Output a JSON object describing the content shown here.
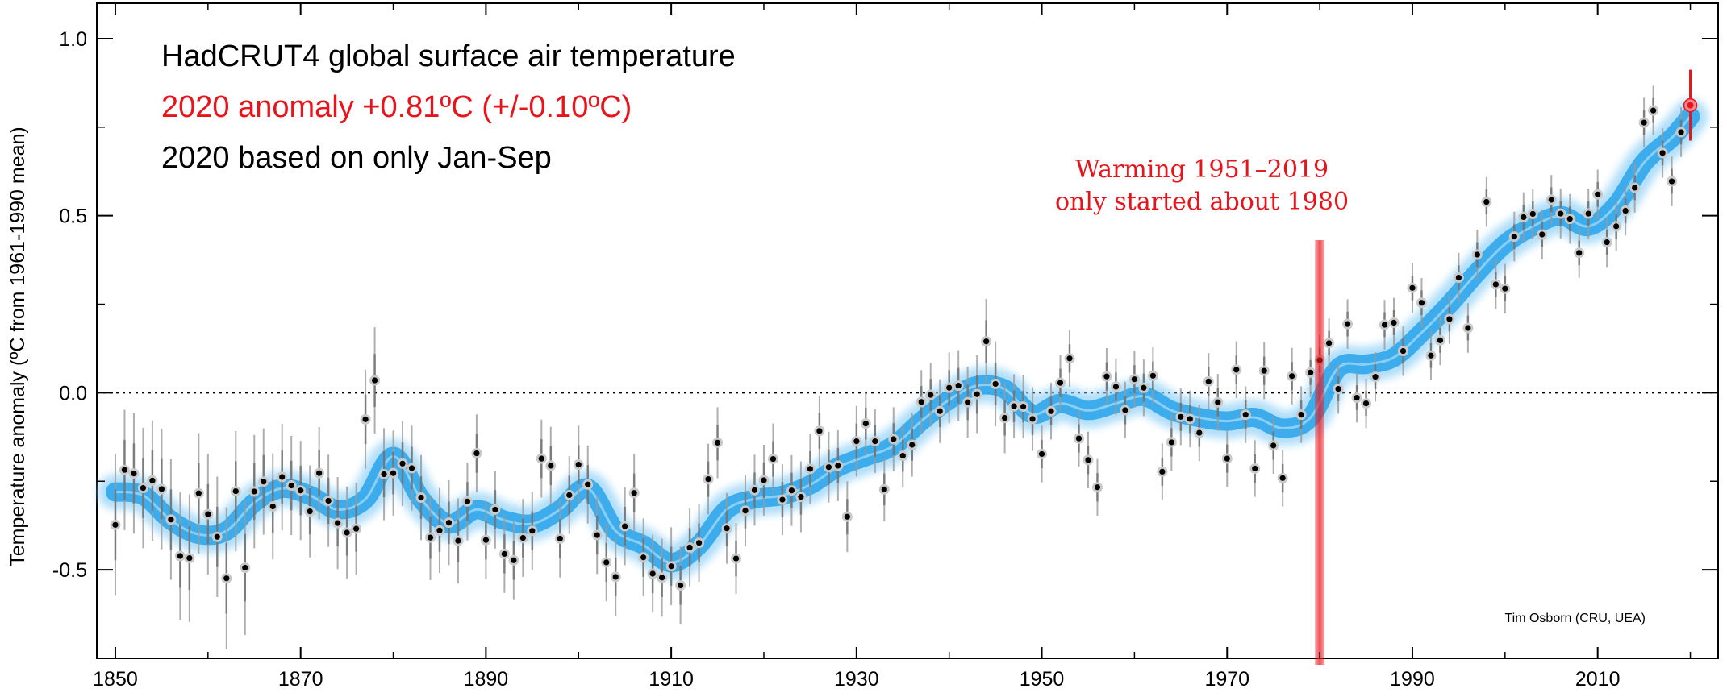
{
  "chart_data": {
    "type": "scatter",
    "title_lines": [
      {
        "text": "HadCRUT4 global surface air temperature",
        "color": "#000000"
      },
      {
        "text": "2020 anomaly +0.81ºC (+/-0.10ºC)",
        "color": "#e8141b"
      },
      {
        "text": "2020 based on only Jan-Sep",
        "color": "#000000"
      }
    ],
    "ylabel": "Temperature anomaly (ºC from 1961-1990 mean)",
    "xlabel": "",
    "xlim": [
      1848,
      2023
    ],
    "ylim": [
      -0.75,
      1.1
    ],
    "x_ticks": [
      1850,
      1870,
      1890,
      1910,
      1930,
      1950,
      1970,
      1990,
      2010
    ],
    "x_tick_labels": [
      "1850",
      "1870",
      "1890",
      "1910",
      "1930",
      "1950",
      "1970",
      "1990",
      "2010"
    ],
    "y_ticks": [
      -0.5,
      0.0,
      0.5,
      1.0
    ],
    "y_tick_labels": [
      "-0.5",
      "0.0",
      "0.5",
      "1.0"
    ],
    "zero_line": true,
    "annotation": {
      "lines": [
        "Warming 1951–2019",
        "only started about 1980"
      ],
      "color": "#e8141b",
      "marker_year": 1980
    },
    "credit": "Tim Osborn (CRU, UEA)",
    "series": [
      {
        "years": [
          1850,
          1851,
          1852,
          1853,
          1854,
          1855,
          1856,
          1857,
          1858,
          1859,
          1860,
          1861,
          1862,
          1863,
          1864,
          1865,
          1866,
          1867,
          1868,
          1869,
          1870,
          1871,
          1872,
          1873,
          1874,
          1875,
          1876,
          1877,
          1878,
          1879,
          1880,
          1881,
          1882,
          1883,
          1884,
          1885,
          1886,
          1887,
          1888,
          1889,
          1890,
          1891,
          1892,
          1893,
          1894,
          1895,
          1896,
          1897,
          1898,
          1899,
          1900,
          1901,
          1902,
          1903,
          1904,
          1905,
          1906,
          1907,
          1908,
          1909,
          1910,
          1911,
          1912,
          1913,
          1914,
          1915,
          1916,
          1917,
          1918,
          1919,
          1920,
          1921,
          1922,
          1923,
          1924,
          1925,
          1926,
          1927,
          1928,
          1929,
          1930,
          1931,
          1932,
          1933,
          1934,
          1935,
          1936,
          1937,
          1938,
          1939,
          1940,
          1941,
          1942,
          1943,
          1944,
          1945,
          1946,
          1947,
          1948,
          1949,
          1950,
          1951,
          1952,
          1953,
          1954,
          1955,
          1956,
          1957,
          1958,
          1959,
          1960,
          1961,
          1962,
          1963,
          1964,
          1965,
          1966,
          1967,
          1968,
          1969,
          1970,
          1971,
          1972,
          1973,
          1974,
          1975,
          1976,
          1977,
          1978,
          1979,
          1980,
          1981,
          1982,
          1983,
          1984,
          1985,
          1986,
          1987,
          1988,
          1989,
          1990,
          1991,
          1992,
          1993,
          1994,
          1995,
          1996,
          1997,
          1998,
          1999,
          2000,
          2001,
          2002,
          2003,
          2004,
          2005,
          2006,
          2007,
          2008,
          2009,
          2010,
          2011,
          2012,
          2013,
          2014,
          2015,
          2016,
          2017,
          2018,
          2019,
          2020
        ],
        "values": [
          -0.373,
          -0.218,
          -0.228,
          -0.269,
          -0.248,
          -0.272,
          -0.358,
          -0.461,
          -0.467,
          -0.284,
          -0.343,
          -0.407,
          -0.524,
          -0.278,
          -0.494,
          -0.279,
          -0.251,
          -0.321,
          -0.238,
          -0.262,
          -0.276,
          -0.335,
          -0.227,
          -0.305,
          -0.368,
          -0.395,
          -0.384,
          -0.075,
          0.035,
          -0.23,
          -0.227,
          -0.2,
          -0.213,
          -0.296,
          -0.409,
          -0.389,
          -0.367,
          -0.418,
          -0.307,
          -0.171,
          -0.416,
          -0.33,
          -0.455,
          -0.473,
          -0.41,
          -0.39,
          -0.186,
          -0.206,
          -0.412,
          -0.289,
          -0.203,
          -0.259,
          -0.402,
          -0.479,
          -0.52,
          -0.377,
          -0.283,
          -0.465,
          -0.511,
          -0.522,
          -0.49,
          -0.544,
          -0.437,
          -0.424,
          -0.244,
          -0.141,
          -0.383,
          -0.468,
          -0.333,
          -0.275,
          -0.247,
          -0.187,
          -0.302,
          -0.276,
          -0.294,
          -0.215,
          -0.108,
          -0.21,
          -0.206,
          -0.35,
          -0.137,
          -0.087,
          -0.137,
          -0.273,
          -0.131,
          -0.178,
          -0.147,
          -0.026,
          -0.006,
          -0.052,
          0.014,
          0.02,
          -0.027,
          -0.004,
          0.145,
          0.025,
          -0.071,
          -0.038,
          -0.039,
          -0.074,
          -0.173,
          -0.052,
          0.028,
          0.097,
          -0.129,
          -0.19,
          -0.267,
          0.046,
          0.017,
          -0.049,
          0.038,
          0.014,
          0.048,
          -0.223,
          -0.14,
          -0.068,
          -0.074,
          -0.113,
          0.032,
          -0.027,
          -0.186,
          0.065,
          -0.062,
          -0.214,
          0.062,
          -0.149,
          -0.241,
          0.047,
          -0.062,
          0.057,
          0.092,
          0.14,
          0.011,
          0.194,
          -0.014,
          -0.03,
          0.045,
          0.192,
          0.198,
          0.118,
          0.296,
          0.254,
          0.105,
          0.148,
          0.208,
          0.325,
          0.183,
          0.39,
          0.539,
          0.306,
          0.294,
          0.441,
          0.496,
          0.505,
          0.447,
          0.545,
          0.506,
          0.491,
          0.395,
          0.506,
          0.56,
          0.425,
          0.47,
          0.514,
          0.579,
          0.763,
          0.797,
          0.677,
          0.597,
          0.736,
          0.812
        ],
        "errors": [
          0.2,
          0.17,
          0.17,
          0.17,
          0.17,
          0.17,
          0.17,
          0.18,
          0.18,
          0.17,
          0.17,
          0.17,
          0.2,
          0.17,
          0.19,
          0.16,
          0.15,
          0.15,
          0.15,
          0.14,
          0.14,
          0.13,
          0.13,
          0.13,
          0.13,
          0.13,
          0.13,
          0.14,
          0.15,
          0.13,
          0.12,
          0.12,
          0.12,
          0.12,
          0.12,
          0.12,
          0.12,
          0.12,
          0.11,
          0.11,
          0.11,
          0.11,
          0.11,
          0.11,
          0.11,
          0.11,
          0.11,
          0.11,
          0.11,
          0.11,
          0.11,
          0.11,
          0.11,
          0.11,
          0.11,
          0.11,
          0.11,
          0.11,
          0.11,
          0.11,
          0.11,
          0.11,
          0.11,
          0.11,
          0.1,
          0.1,
          0.1,
          0.1,
          0.1,
          0.1,
          0.1,
          0.1,
          0.1,
          0.1,
          0.1,
          0.1,
          0.1,
          0.1,
          0.1,
          0.1,
          0.1,
          0.09,
          0.09,
          0.09,
          0.09,
          0.09,
          0.09,
          0.09,
          0.09,
          0.09,
          0.1,
          0.1,
          0.1,
          0.11,
          0.12,
          0.12,
          0.1,
          0.09,
          0.09,
          0.09,
          0.08,
          0.08,
          0.08,
          0.08,
          0.08,
          0.08,
          0.08,
          0.08,
          0.08,
          0.08,
          0.08,
          0.08,
          0.08,
          0.08,
          0.08,
          0.08,
          0.08,
          0.08,
          0.08,
          0.08,
          0.08,
          0.08,
          0.08,
          0.08,
          0.08,
          0.08,
          0.08,
          0.08,
          0.08,
          0.07,
          0.07,
          0.07,
          0.07,
          0.07,
          0.07,
          0.07,
          0.07,
          0.07,
          0.07,
          0.07,
          0.07,
          0.07,
          0.07,
          0.07,
          0.07,
          0.07,
          0.07,
          0.07,
          0.07,
          0.07,
          0.07,
          0.07,
          0.07,
          0.07,
          0.07,
          0.07,
          0.07,
          0.07,
          0.07,
          0.07,
          0.07,
          0.07,
          0.07,
          0.07,
          0.07,
          0.07,
          0.07,
          0.07,
          0.07,
          0.07,
          0.1
        ]
      },
      {
        "smooth_years": [
          1850,
          1853,
          1856,
          1859,
          1862,
          1865,
          1868,
          1871,
          1874,
          1877,
          1880,
          1883,
          1886,
          1889,
          1892,
          1895,
          1898,
          1901,
          1904,
          1907,
          1910,
          1913,
          1916,
          1919,
          1922,
          1925,
          1928,
          1931,
          1934,
          1937,
          1940,
          1943,
          1946,
          1949,
          1952,
          1955,
          1958,
          1961,
          1964,
          1967,
          1970,
          1973,
          1976,
          1979,
          1982,
          1985,
          1988,
          1991,
          1994,
          1997,
          2000,
          2003,
          2006,
          2009,
          2012,
          2015,
          2018,
          2020
        ],
        "smooth_values": [
          -0.28,
          -0.29,
          -0.36,
          -0.4,
          -0.39,
          -0.31,
          -0.27,
          -0.29,
          -0.33,
          -0.3,
          -0.18,
          -0.3,
          -0.37,
          -0.33,
          -0.36,
          -0.37,
          -0.33,
          -0.27,
          -0.39,
          -0.43,
          -0.48,
          -0.43,
          -0.33,
          -0.3,
          -0.29,
          -0.26,
          -0.21,
          -0.18,
          -0.15,
          -0.08,
          -0.02,
          0.02,
          0.01,
          -0.06,
          -0.03,
          -0.05,
          -0.03,
          -0.01,
          -0.05,
          -0.07,
          -0.08,
          -0.07,
          -0.1,
          -0.07,
          0.07,
          0.08,
          0.1,
          0.17,
          0.25,
          0.34,
          0.42,
          0.47,
          0.5,
          0.47,
          0.53,
          0.65,
          0.72,
          0.78
        ],
        "smooth_color": "#29a3ea"
      }
    ]
  }
}
